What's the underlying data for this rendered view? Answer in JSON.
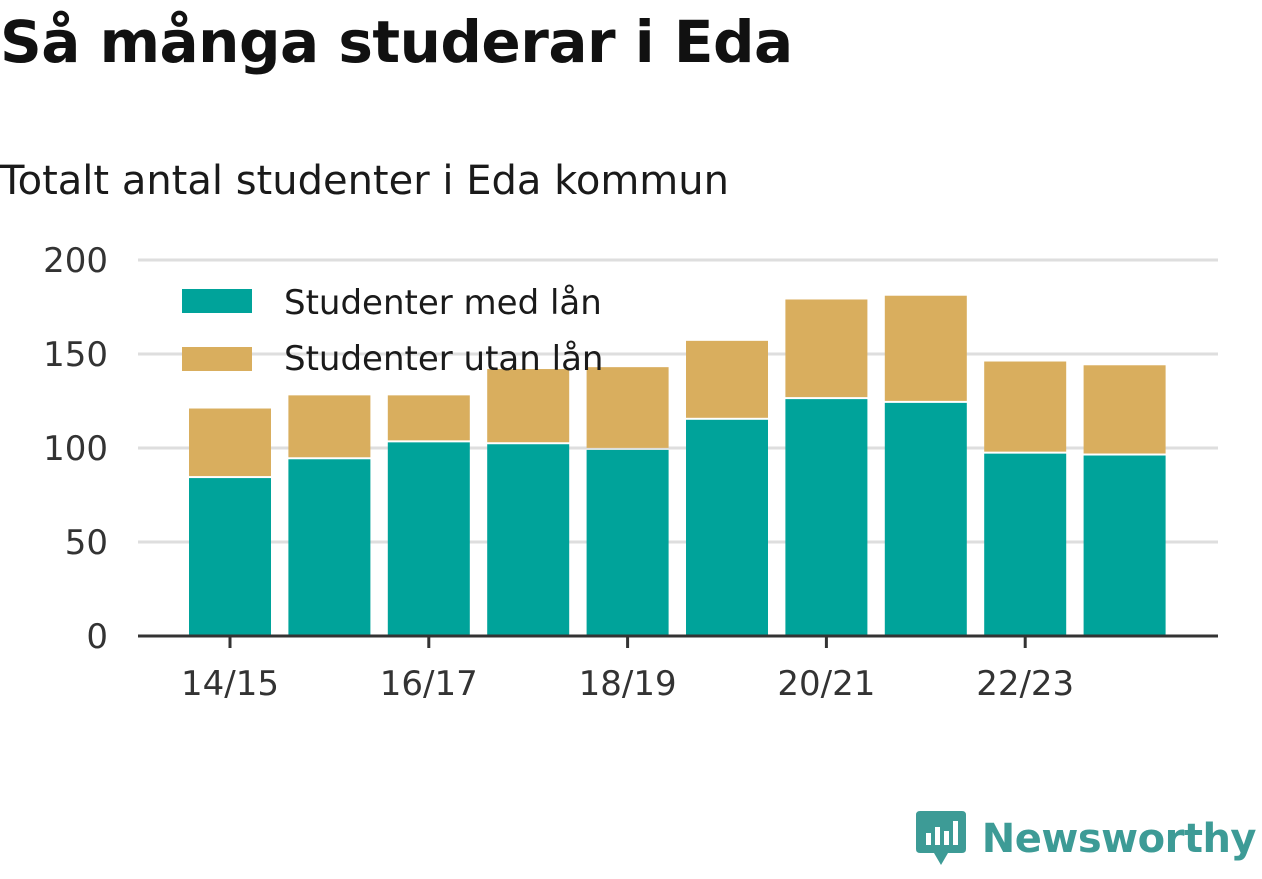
{
  "title": "Så många studerar i Eda",
  "subtitle": "Totalt antal studenter i Eda kommun",
  "brand": {
    "name": "Newsworthy",
    "icon": "newsworthy-logo-icon",
    "color": "#3d9b96"
  },
  "chart_data": {
    "type": "bar",
    "stacked": true,
    "categories": [
      "14/15",
      "15/16",
      "16/17",
      "17/18",
      "18/19",
      "19/20",
      "20/21",
      "21/22",
      "22/23",
      "23/24"
    ],
    "x_tick_labels": [
      "14/15",
      "16/17",
      "18/19",
      "20/21",
      "22/23"
    ],
    "series": [
      {
        "name": "Studenter med lån",
        "color": "#00a39a",
        "values": [
          84,
          94,
          103,
          102,
          99,
          115,
          126,
          124,
          97,
          96
        ]
      },
      {
        "name": "Studenter utan lån",
        "color": "#d9ae5e",
        "values": [
          37,
          34,
          25,
          40,
          44,
          42,
          53,
          57,
          49,
          48
        ]
      }
    ],
    "ylim": [
      0,
      200
    ],
    "yticks": [
      0,
      50,
      100,
      150,
      200
    ],
    "grid": true,
    "legend_position": "top-left"
  }
}
